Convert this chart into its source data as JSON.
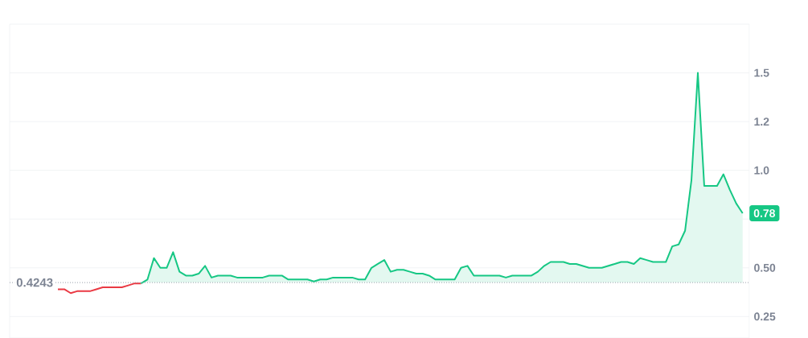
{
  "chart_data": {
    "type": "area",
    "categories": [
      null,
      null,
      null,
      null,
      null,
      null,
      null,
      null,
      null,
      null,
      null,
      null,
      null,
      null,
      null,
      null,
      null,
      null,
      null,
      null,
      null,
      null,
      null,
      null,
      null,
      null,
      null,
      null,
      null,
      null,
      null,
      null,
      null,
      null,
      null,
      null,
      null,
      null,
      null,
      null,
      null,
      null,
      null,
      null,
      null,
      null,
      null,
      null,
      null,
      null,
      null,
      null,
      null,
      null,
      null,
      null,
      null,
      null,
      null,
      null,
      null,
      null,
      null,
      null,
      null,
      null,
      null,
      null,
      null,
      null,
      null,
      null,
      null,
      null,
      null,
      null,
      null,
      null,
      null,
      null,
      null,
      null,
      null,
      null,
      null,
      null,
      null,
      null,
      null,
      null,
      null,
      null,
      null,
      null,
      null,
      null,
      null,
      null,
      null,
      null,
      null,
      null,
      null,
      null,
      null,
      null,
      null,
      null
    ],
    "series": [
      {
        "type": "line",
        "color": "#ea3943",
        "values": [
          0.39,
          0.39,
          0.37,
          0.38,
          0.38,
          0.38,
          0.39,
          0.4,
          0.4,
          0.4,
          0.4,
          0.41,
          0.42,
          0.42,
          null,
          null,
          null,
          null,
          null,
          null,
          null,
          null,
          null,
          null,
          null,
          null,
          null,
          null,
          null,
          null,
          null,
          null,
          null,
          null,
          null,
          null,
          null,
          null,
          null,
          null,
          null,
          null,
          null,
          null,
          null,
          null,
          null,
          null,
          null,
          null,
          null,
          null,
          null,
          null,
          null,
          null,
          null,
          null,
          null,
          null,
          null,
          null,
          null,
          null,
          null,
          null,
          null,
          null,
          null,
          null,
          null,
          null,
          null,
          null,
          null,
          null,
          null,
          null,
          null,
          null,
          null,
          null,
          null,
          null,
          null,
          null,
          null,
          null,
          null,
          null,
          null,
          null,
          null,
          null,
          null,
          null,
          null,
          null,
          null,
          null,
          null,
          null,
          null,
          null,
          null,
          null,
          null,
          null
        ]
      },
      {
        "color": "#16c784",
        "values": [
          null,
          null,
          null,
          null,
          null,
          null,
          null,
          null,
          null,
          null,
          null,
          null,
          null,
          0.42,
          0.44,
          0.55,
          0.5,
          0.5,
          0.58,
          0.48,
          0.46,
          0.46,
          0.47,
          0.51,
          0.45,
          0.46,
          0.46,
          0.46,
          0.45,
          0.45,
          0.45,
          0.45,
          0.45,
          0.46,
          0.46,
          0.46,
          0.44,
          0.44,
          0.44,
          0.44,
          0.43,
          0.44,
          0.44,
          0.45,
          0.45,
          0.45,
          0.45,
          0.44,
          0.44,
          0.5,
          0.52,
          0.54,
          0.48,
          0.49,
          0.49,
          0.48,
          0.47,
          0.47,
          0.46,
          0.44,
          0.44,
          0.44,
          0.44,
          0.5,
          0.51,
          0.46,
          0.46,
          0.46,
          0.46,
          0.46,
          0.45,
          0.46,
          0.46,
          0.46,
          0.46,
          0.48,
          0.51,
          0.53,
          0.53,
          0.53,
          0.52,
          0.52,
          0.51,
          0.5,
          0.5,
          0.5,
          0.51,
          0.52,
          0.53,
          0.53,
          0.52,
          0.55,
          0.54,
          0.53,
          0.53,
          0.53,
          0.61,
          0.62,
          0.69,
          0.95,
          1.5,
          0.92,
          0.92,
          0.92,
          0.98,
          0.9,
          0.83,
          0.78
        ]
      }
    ],
    "ylim": [
      0.14,
      1.75
    ],
    "yticks": [
      {
        "value": 0.25,
        "label": "0.25"
      },
      {
        "value": 0.5,
        "label": "0.50"
      },
      {
        "value": 0.75,
        "label": null
      },
      {
        "value": 1.0,
        "label": "1.0"
      },
      {
        "value": 1.25,
        "label": "1.2"
      },
      1.5
    ],
    "grid": "y",
    "ref_lines": [
      {
        "axis": "y",
        "value": 0.4243,
        "label": "0.4243",
        "color": "#9aa0ab",
        "line_style": "dotted"
      }
    ],
    "annotations": [
      "0.78"
    ]
  }
}
